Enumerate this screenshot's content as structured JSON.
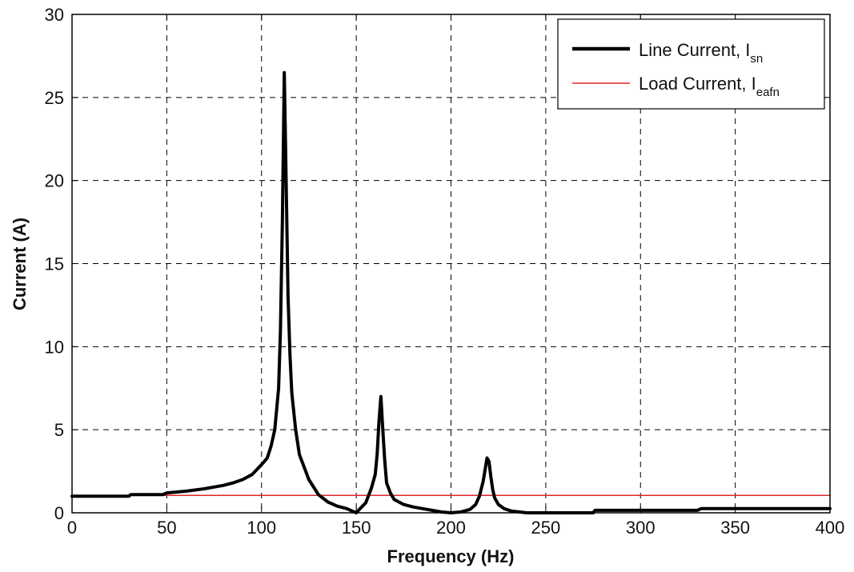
{
  "chart_data": {
    "type": "line",
    "xlabel": "Frequency (Hz)",
    "ylabel": "Current (A)",
    "xlim": [
      0,
      400
    ],
    "ylim": [
      0,
      30
    ],
    "x_ticks": [
      "0",
      "50",
      "100",
      "150",
      "200",
      "250",
      "300",
      "350",
      "400"
    ],
    "y_ticks": [
      "0",
      "5",
      "10",
      "15",
      "20",
      "25",
      "30"
    ],
    "grid": true,
    "grid_style": "dashed",
    "legend_position": "top-right",
    "series": [
      {
        "name": "Line Current, I",
        "name_subscript": "sn",
        "color": "#000000",
        "style": "thick",
        "x": [
          0,
          30,
          31,
          48,
          50,
          60,
          70,
          80,
          85,
          90,
          95,
          100,
          103,
          105,
          107,
          109,
          110,
          111,
          112,
          113,
          114,
          115,
          116,
          118,
          120,
          125,
          130,
          135,
          140,
          145,
          148,
          150,
          152,
          155,
          158,
          160,
          161,
          162,
          163,
          164,
          165,
          166,
          168,
          170,
          175,
          180,
          185,
          190,
          195,
          200,
          205,
          210,
          213,
          215,
          217,
          218,
          219,
          220,
          221,
          222,
          223,
          225,
          228,
          232,
          240,
          250,
          260,
          270,
          275,
          276,
          300,
          330,
          332,
          370,
          400
        ],
        "values": [
          1.0,
          1.0,
          1.1,
          1.1,
          1.2,
          1.3,
          1.45,
          1.65,
          1.8,
          2.0,
          2.3,
          2.9,
          3.3,
          4.0,
          5.0,
          7.5,
          11.0,
          17.5,
          26.5,
          20.0,
          13.0,
          9.5,
          7.2,
          5.0,
          3.5,
          2.0,
          1.1,
          0.65,
          0.4,
          0.25,
          0.1,
          0.0,
          0.25,
          0.6,
          1.5,
          2.3,
          3.5,
          5.5,
          7.0,
          5.0,
          3.2,
          1.8,
          1.2,
          0.8,
          0.5,
          0.35,
          0.25,
          0.15,
          0.05,
          0.0,
          0.05,
          0.2,
          0.5,
          1.0,
          1.9,
          2.6,
          3.3,
          3.1,
          2.2,
          1.4,
          0.9,
          0.5,
          0.25,
          0.1,
          0.0,
          0.0,
          0.0,
          0.0,
          0.0,
          0.15,
          0.15,
          0.15,
          0.25,
          0.25,
          0.25
        ]
      },
      {
        "name": "Load Current, I",
        "name_subscript": "eafn",
        "color": "#e0252b",
        "style": "thin",
        "x": [
          0,
          400
        ],
        "values": [
          1.05,
          1.05
        ]
      }
    ]
  }
}
